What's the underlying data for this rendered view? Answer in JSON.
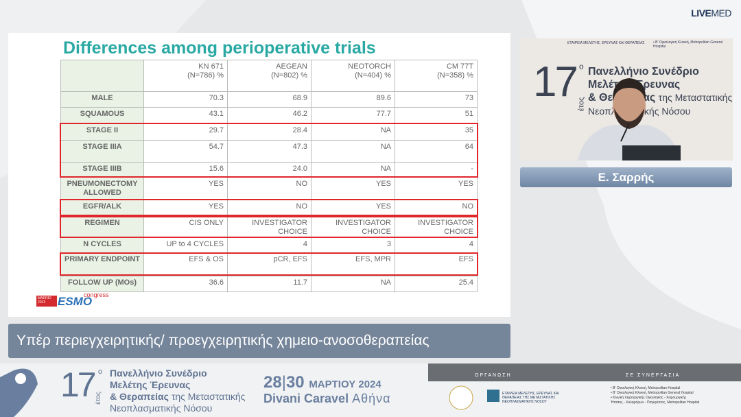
{
  "brand": {
    "live": "LIVE",
    "med": "MED"
  },
  "slide": {
    "title": "Differences among perioperative trials",
    "table": {
      "columns": [
        [
          "KN 671",
          "(N=786) %"
        ],
        [
          "AEGEAN",
          "(N=802) %"
        ],
        [
          "NEOTORCH",
          "(N=404) %"
        ],
        [
          "CM 77T",
          "(N=358) %"
        ]
      ],
      "rows": [
        {
          "label": "MALE",
          "values": [
            "70.3",
            "68.9",
            "89.6",
            "73"
          ]
        },
        {
          "label": "SQUAMOUS",
          "values": [
            "43.1",
            "46.2",
            "77.7",
            "51"
          ]
        },
        {
          "label": "STAGE II",
          "values": [
            "29.7",
            "28.4",
            "NA",
            "35"
          ]
        },
        {
          "label": "STAGE IIIA",
          "values": [
            "54.7",
            "47.3",
            "NA",
            "64"
          ]
        },
        {
          "label": "STAGE IIIB",
          "values": [
            "15.6",
            "24.0",
            "NA",
            "-"
          ]
        },
        {
          "label": "PNEUMONECTOMY ALLOWED",
          "values": [
            "YES",
            "NO",
            "YES",
            "YES"
          ]
        },
        {
          "label": "EGFR/ALK",
          "values": [
            "YES",
            "NO",
            "YES",
            "NO"
          ]
        },
        {
          "label": "REGIMEN",
          "values": [
            "CIS ONLY",
            "INVESTIGATOR CHOICE",
            "INVESTIGATOR CHOICE",
            "INVESTIGATOR CHOICE"
          ]
        },
        {
          "label": "N CYCLES",
          "values": [
            "UP to 4 CYCLES",
            "4",
            "3",
            "4"
          ]
        },
        {
          "label": "PRIMARY ENDPOINT",
          "values": [
            "EFS & OS",
            "pCR, EFS",
            "EFS, MPR",
            "EFS"
          ]
        },
        {
          "label": "FOLLOW UP (MOs)",
          "values": [
            "36.6",
            "11.7",
            "NA",
            "25.4"
          ]
        }
      ]
    },
    "logo": {
      "madrid": "MADRID",
      "year": "2023",
      "esmo": "ESMO",
      "congress": "congress"
    }
  },
  "video": {
    "number": "17",
    "sup": "ο",
    "etos": "έτος",
    "line1": "Πανελλήνιο Συνέδριο",
    "line2": "Μελέτης Έρευνας",
    "line3": "& Θεραπείας",
    "line3b": "της Μεταστατικής",
    "line4": "Νεοπλασματικής Νόσου",
    "org": "ΕΤΑΙΡΕΙΑ ΜΕΛΕΤΗΣ, ΕΡΕΥΝΑΣ ΚΑΙ ΘΕΡΑΠΕΙΑΣ",
    "partner1": "• Β' Ογκολογική Κλινική, Metropolitan General Hospital"
  },
  "speaker": "Ε. Σαρρής",
  "caption": "Υπέρ περιεγχειρητικής/ προεγχειρητικής χημειο-ανοσοθεραπείας",
  "footer": {
    "number": "17",
    "sup": "ο",
    "etos": "έτος",
    "line1": "Πανελλήνιο Συνέδριο",
    "line2": "Μελέτης Έρευνας",
    "line3": "& Θεραπείας",
    "line3b": "της Μεταστατικής",
    "line4": "Νεοπλασματικής Νόσου",
    "day1": "28",
    "day2": "30",
    "month": "ΜΑΡΤΙΟΥ 2024",
    "venue": "Divani Caravel",
    "city": "Αθήνα",
    "organization": "ΟΡΓΑΝΩΣΗ",
    "cooperation": "ΣΕ ΣΥΝΕΡΓΑΣΙΑ",
    "org_name": "ΕΤΑΙΡΕΙΑ ΜΕΛΕΤΗΣ, ΕΡΕΥΝΑΣ ΚΑΙ ΘΕΡΑΠΕΙΑΣ ΤΗΣ ΜΕΤΑΣΤΑΤΙΚΗΣ ΝΕΟΠΛΑΣΜΑΤΙΚΗΣ ΝΟΣΟΥ",
    "partners": [
      "• Β' Ογκολογική Κλινική, Metropolitan Hospital",
      "• Β' Ογκολογική Κλινική, Metropolitan General Hospital",
      "• Κλινική Χειρουργικής Ογκολογίας - Χειρουργικής",
      "Ήπατος - Χοληφόρων - Παγκρέατος, Metropolitan Hospital"
    ]
  }
}
